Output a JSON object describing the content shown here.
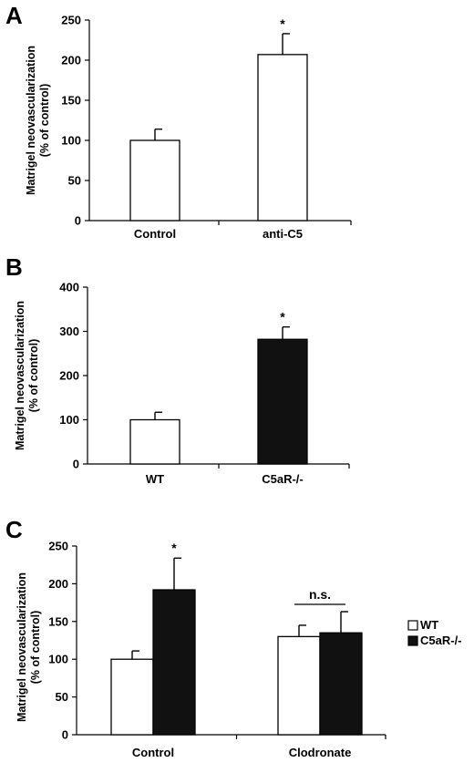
{
  "chart_data": [
    {
      "type": "bar",
      "panel": "A",
      "ylabel": [
        "Matrigel neovascularization",
        "(% of control)"
      ],
      "ylim": [
        0,
        250
      ],
      "yticks": [
        0,
        50,
        100,
        150,
        200,
        250
      ],
      "categories": [
        "Control",
        "anti-C5"
      ],
      "series": [
        {
          "fill": "#ffffff",
          "values": [
            100,
            207
          ],
          "errors": [
            14,
            26
          ]
        }
      ],
      "annotations": [
        {
          "text": "*",
          "category": 1,
          "series": 0
        }
      ]
    },
    {
      "type": "bar",
      "panel": "B",
      "ylabel": [
        "Matrigel neovascularization",
        "(% of control)"
      ],
      "ylim": [
        0,
        400
      ],
      "yticks": [
        0,
        100,
        200,
        300,
        400
      ],
      "categories": [
        "WT",
        "C5aR-/-"
      ],
      "series": [
        {
          "fills": [
            "#ffffff",
            "#111111"
          ],
          "values": [
            100,
            282
          ],
          "errors": [
            17,
            28
          ]
        }
      ],
      "annotations": [
        {
          "text": "*",
          "category": 1,
          "series": 0
        }
      ]
    },
    {
      "type": "bar",
      "panel": "C",
      "ylabel": [
        "Matrigel neovascularization",
        "(% of control)"
      ],
      "ylim": [
        0,
        250
      ],
      "yticks": [
        0,
        50,
        100,
        150,
        200,
        250
      ],
      "categories": [
        "Control",
        "Clodronate"
      ],
      "series": [
        {
          "name": "WT",
          "fill": "#ffffff",
          "values": [
            100,
            130
          ],
          "errors": [
            11,
            15
          ]
        },
        {
          "name": "C5aR-/-",
          "fill": "#111111",
          "values": [
            192,
            135
          ],
          "errors": [
            42,
            28
          ]
        }
      ],
      "legend": "right",
      "annotations": [
        {
          "text": "*",
          "category": 0,
          "series": 1
        },
        {
          "text": "n.s.",
          "category": 1,
          "bracket": true
        }
      ]
    }
  ]
}
